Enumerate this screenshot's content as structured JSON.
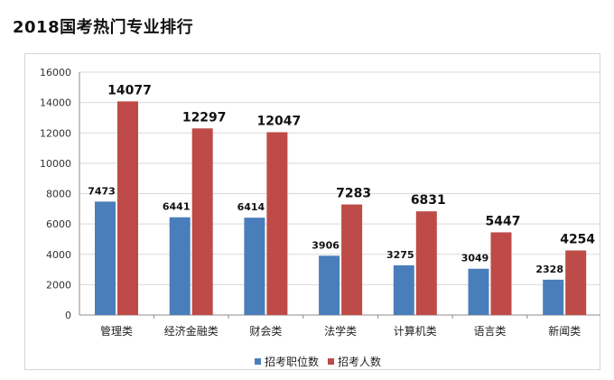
{
  "page": {
    "title": "2018国考热门专业排行"
  },
  "colors": {
    "series1": "#4a7ebb",
    "series2": "#be4b48",
    "grid": "#d9d9d9",
    "axis": "#8c8c8c"
  },
  "chart_data": {
    "type": "bar",
    "categories": [
      "管理类",
      "经济金融类",
      "财会类",
      "法学类",
      "计算机类",
      "语言类",
      "新闻类"
    ],
    "series": [
      {
        "name": "招考职位数",
        "values": [
          7473,
          6441,
          6414,
          3906,
          3275,
          3049,
          2328
        ]
      },
      {
        "name": "招考人数",
        "values": [
          14077,
          12297,
          12047,
          7283,
          6831,
          5447,
          4254
        ]
      }
    ],
    "title": "",
    "xlabel": "",
    "ylabel": "",
    "ylim": [
      0,
      16000
    ],
    "yticks": [
      "0",
      "2000",
      "4000",
      "6000",
      "8000",
      "10000",
      "12000",
      "14000",
      "16000"
    ],
    "grid": true,
    "legend_position": "bottom"
  }
}
